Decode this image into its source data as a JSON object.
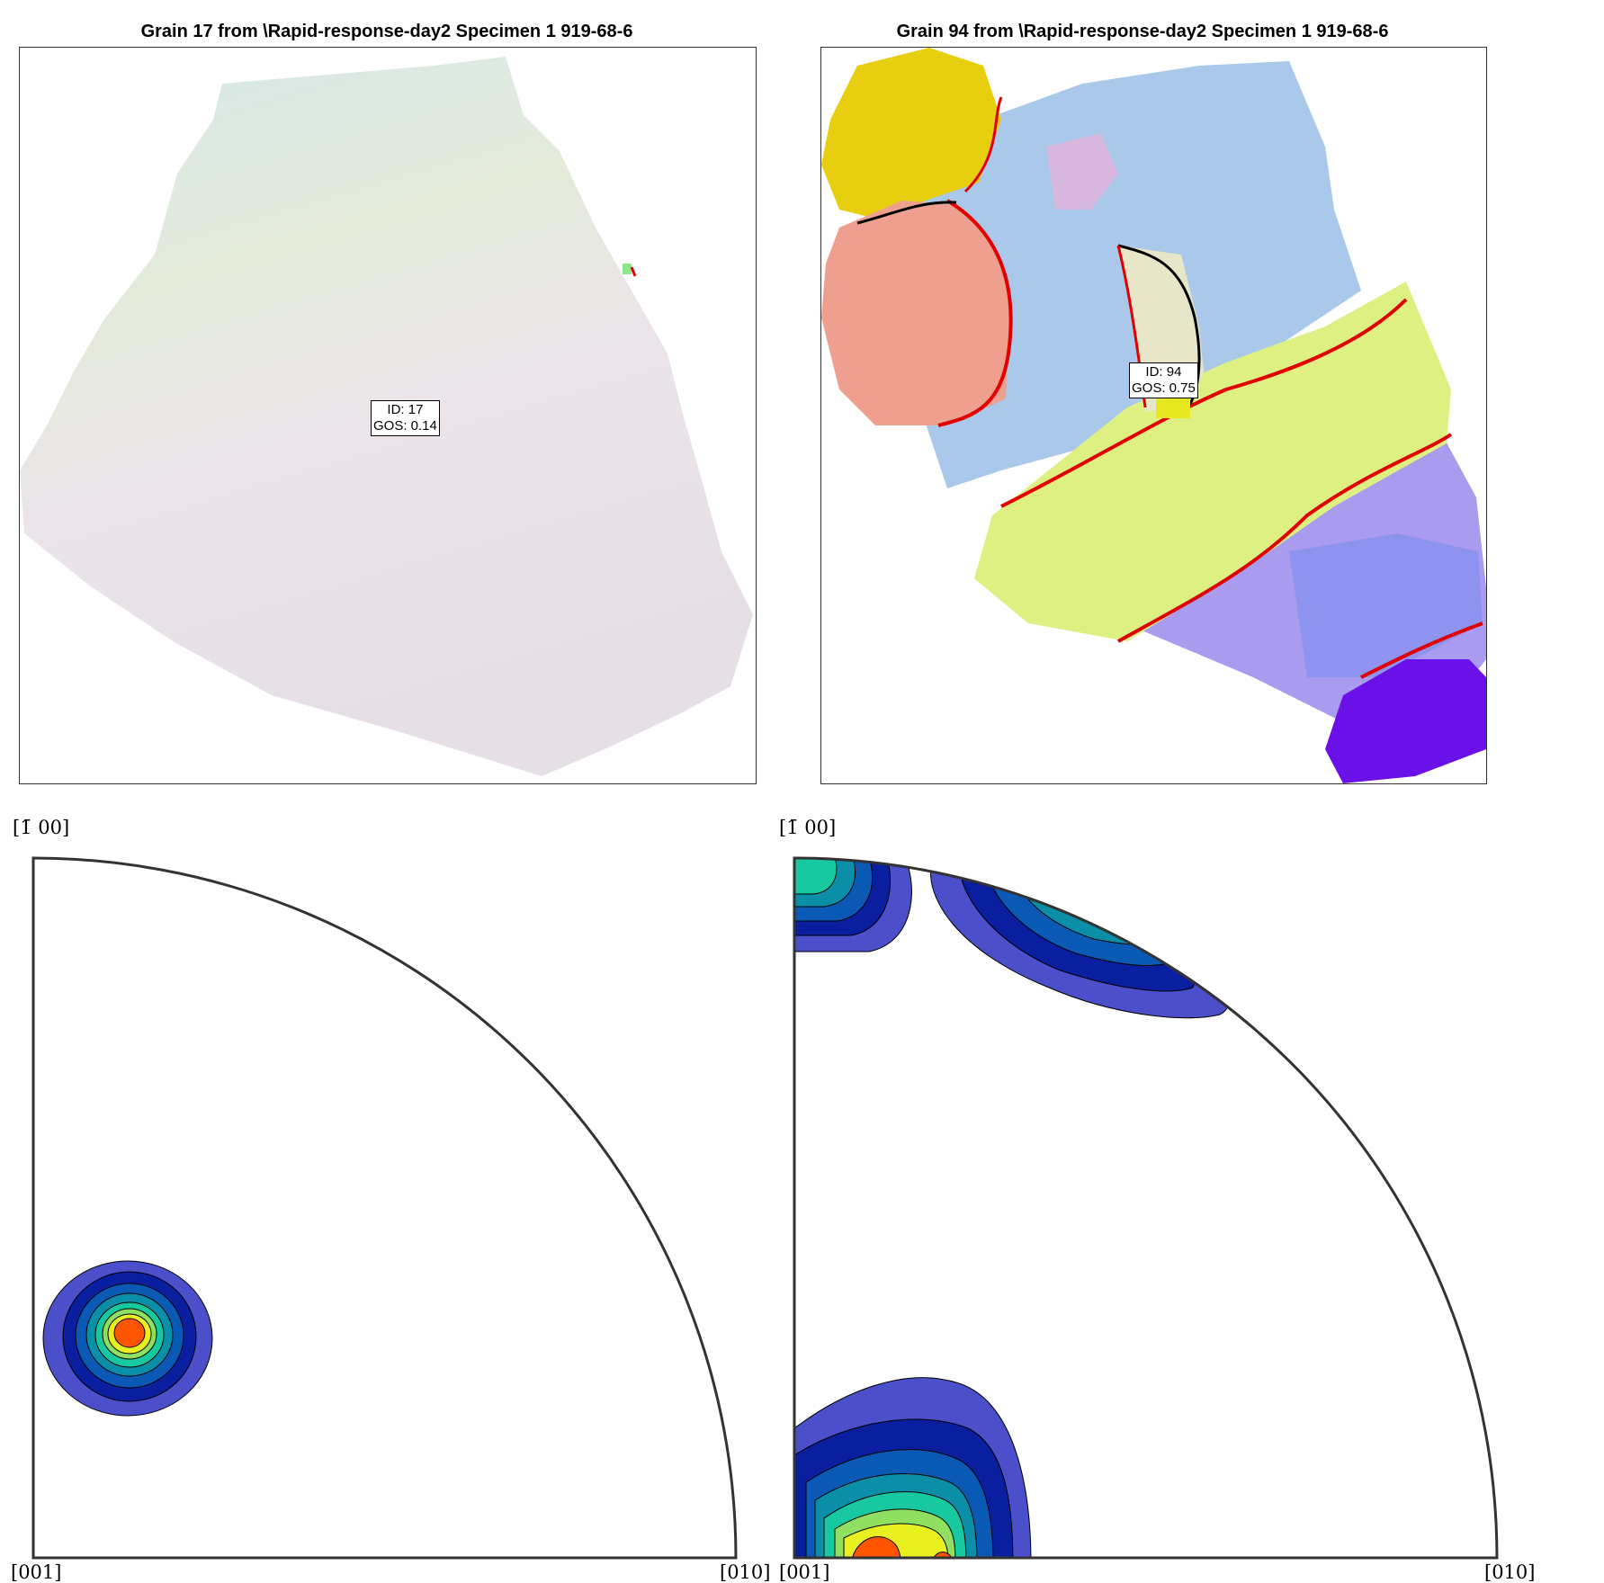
{
  "panels": {
    "left": {
      "title": "Grain 17 from \\Rapid-response-day2 Specimen 1 919-68-6",
      "label_id": "ID: 17",
      "label_gos": "GOS: 0.14",
      "grain_id": 17,
      "gos": 0.14
    },
    "right": {
      "title": "Grain 94 from \\Rapid-response-day2 Specimen 1 919-68-6",
      "label_id": "ID: 94",
      "label_gos": "GOS: 0.75",
      "grain_id": 94,
      "gos": 0.75
    }
  },
  "pole_figures": {
    "left": {
      "top_label": "[1̄ 00]",
      "bottom_left_label": "[001]",
      "bottom_right_label": "[010]"
    },
    "right": {
      "top_label": "[1̄ 00]",
      "bottom_left_label": "[001]",
      "bottom_right_label": "[010]"
    }
  },
  "colors": {
    "grain_boundary_high": "#e00000",
    "grain_boundary_twin": "#ffee00",
    "grain_boundary_low": "#000000",
    "contour_levels": [
      "#4b4fc9",
      "#0a1fa0",
      "#0a5ab5",
      "#0b8fa8",
      "#18c8a0",
      "#8fe060",
      "#e8f020",
      "#ff5500"
    ]
  },
  "chart_data": {
    "type": "contour",
    "description_units": "inverse pole figure, [001]-[010]-[-100] quarter sector",
    "figures": [
      {
        "name": "Grain 17",
        "peaks": [
          {
            "direction": "near [001]",
            "levels": 8
          }
        ]
      },
      {
        "name": "Grain 94",
        "peaks": [
          {
            "direction": "near [-100]",
            "levels": 5
          },
          {
            "direction": "rim between [-100] and [010]",
            "levels": 5
          },
          {
            "direction": "near [001]",
            "levels": 8
          }
        ]
      }
    ]
  }
}
